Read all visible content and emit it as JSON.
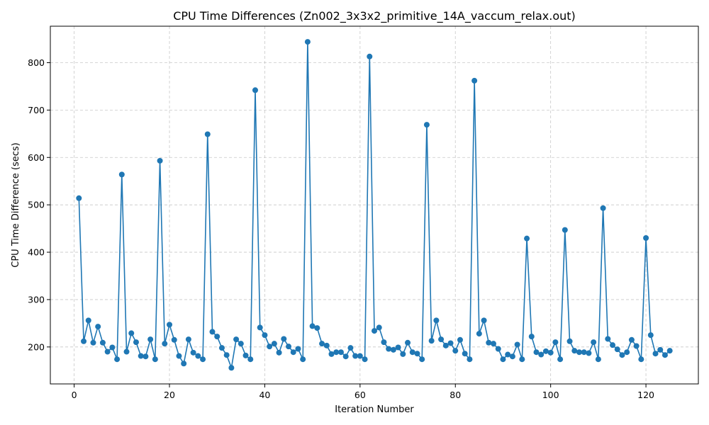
{
  "chart_data": {
    "type": "line",
    "title": "CPU Time Differences (Zn002_3x3x2_primitive_14A_vaccum_relax.out)",
    "xlabel": "Iteration Number",
    "ylabel": "CPU Time Difference (secs)",
    "xlim": [
      -5,
      131
    ],
    "ylim": [
      122,
      877
    ],
    "xticks": [
      0,
      20,
      40,
      60,
      80,
      100,
      120
    ],
    "yticks": [
      200,
      300,
      400,
      500,
      600,
      700,
      800
    ],
    "grid": true,
    "line_color": "#1f77b4",
    "marker": "circle",
    "series": [
      {
        "x": [
          1,
          2,
          3,
          4,
          5,
          6,
          7,
          8,
          9,
          10,
          11,
          12,
          13,
          14,
          15,
          16,
          17,
          18,
          19,
          20,
          21,
          22,
          23,
          24,
          25,
          26,
          27,
          28,
          29,
          30,
          31,
          32,
          33,
          34,
          35,
          36,
          37,
          38,
          39,
          40,
          41,
          42,
          43,
          44,
          45,
          46,
          47,
          48,
          49,
          50,
          51,
          52,
          53,
          54,
          55,
          56,
          57,
          58,
          59,
          60,
          61,
          62,
          63,
          64,
          65,
          66,
          67,
          68,
          69,
          70,
          71,
          72,
          73,
          74,
          75,
          76,
          77,
          78,
          79,
          80,
          81,
          82,
          83,
          84,
          85,
          86,
          87,
          88,
          89,
          90,
          91,
          92,
          93,
          94,
          95,
          96,
          97,
          98,
          99,
          100,
          101,
          102,
          103,
          104,
          105,
          106,
          107,
          108,
          109,
          110,
          111,
          112,
          113,
          114,
          115,
          116,
          117,
          118,
          119,
          120,
          121,
          122,
          123,
          124,
          125
        ],
        "values": [
          514,
          212,
          256,
          209,
          243,
          209,
          190,
          199,
          174,
          564,
          190,
          229,
          210,
          181,
          180,
          216,
          174,
          593,
          207,
          247,
          215,
          181,
          165,
          216,
          188,
          181,
          174,
          649,
          232,
          222,
          198,
          183,
          156,
          216,
          207,
          182,
          174,
          742,
          241,
          225,
          201,
          207,
          188,
          217,
          201,
          189,
          196,
          174,
          844,
          244,
          240,
          207,
          203,
          185,
          189,
          189,
          180,
          198,
          181,
          181,
          174,
          813,
          234,
          241,
          210,
          196,
          194,
          199,
          185,
          209,
          189,
          186,
          174,
          669,
          213,
          256,
          216,
          203,
          208,
          192,
          215,
          186,
          174,
          762,
          228,
          256,
          209,
          207,
          196,
          174,
          184,
          180,
          205,
          174,
          429,
          222,
          189,
          184,
          191,
          188,
          210,
          174,
          447,
          212,
          192,
          189,
          189,
          187,
          210,
          174,
          493,
          217,
          204,
          195,
          183,
          189,
          215,
          202,
          174,
          430,
          225,
          186,
          194,
          183,
          192
        ]
      }
    ]
  }
}
